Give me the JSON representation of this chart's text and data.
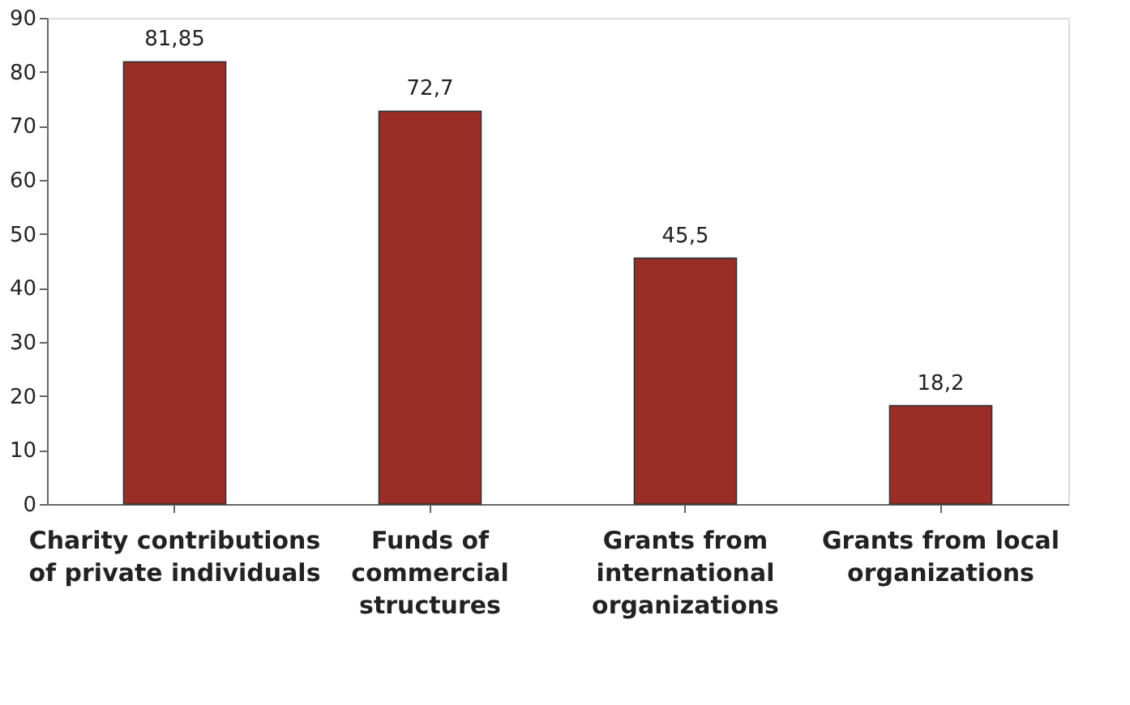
{
  "chart_data": {
    "type": "bar",
    "categories": [
      "Charity contributions\nof private individuals",
      "Funds of\ncommercial\nstructures",
      "Grants from\ninternational\norganizations",
      "Grants from local\norganizations"
    ],
    "values": [
      81.85,
      72.7,
      45.5,
      18.2
    ],
    "value_labels": [
      "81,85",
      "72,7",
      "45,5",
      "18,2"
    ],
    "color": "#9b2d27",
    "ylim": [
      0,
      90
    ],
    "yticks": [
      0,
      10,
      20,
      30,
      40,
      50,
      60,
      70,
      80,
      90
    ],
    "grid": false
  }
}
